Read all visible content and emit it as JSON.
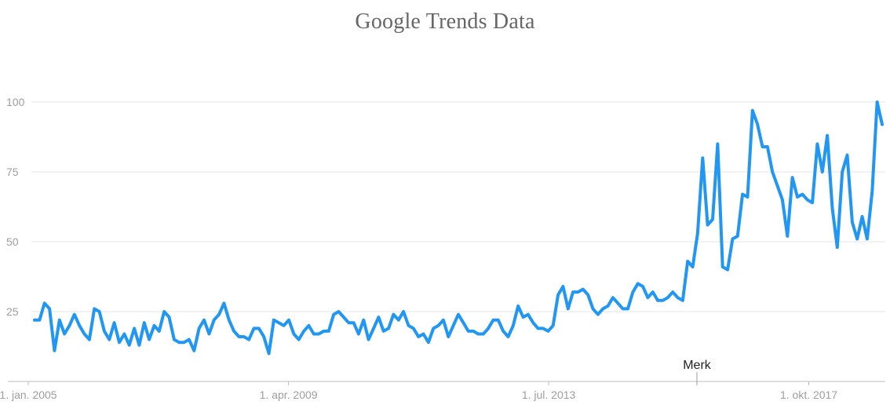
{
  "chart_data": {
    "type": "line",
    "title": "Google Trends Data",
    "xlabel": "",
    "ylabel": "",
    "ylim": [
      0,
      100
    ],
    "yticks": [
      25,
      50,
      75,
      100
    ],
    "x_tick_labels": [
      "1. jan. 2005",
      "1. apr. 2009",
      "1. jul. 2013",
      "1. okt. 2017"
    ],
    "annotation": "Merk",
    "grid": true,
    "legend": "none",
    "colors": {
      "line": "#2196f3",
      "grid": "#e6e6e6",
      "axis": "#bdbdbd",
      "text": "#9e9e9e",
      "title": "#666666"
    },
    "series": [
      {
        "values": [
          22,
          22,
          28,
          26,
          11,
          22,
          17,
          20,
          24,
          20,
          17,
          15,
          26,
          25,
          18,
          15,
          21,
          14,
          17,
          13,
          19,
          13,
          21,
          15,
          20,
          18,
          25,
          23,
          15,
          14,
          14,
          15,
          11,
          19,
          22,
          17,
          22,
          24,
          28,
          22,
          18,
          16,
          16,
          15,
          19,
          19,
          16,
          10,
          22,
          21,
          20,
          22,
          17,
          15,
          18,
          20,
          17,
          17,
          18,
          18,
          24,
          25,
          23,
          21,
          21,
          17,
          22,
          15,
          19,
          23,
          18,
          19,
          24,
          22,
          25,
          20,
          19,
          16,
          17,
          14,
          19,
          20,
          22,
          16,
          20,
          24,
          21,
          18,
          18,
          17,
          17,
          19,
          22,
          22,
          18,
          16,
          20,
          27,
          23,
          24,
          21,
          19,
          19,
          18,
          20,
          31,
          34,
          26,
          32,
          32,
          33,
          31,
          26,
          24,
          26,
          27,
          30,
          28,
          26,
          26,
          32,
          35,
          34,
          30,
          32,
          29,
          29,
          30,
          32,
          30,
          29,
          43,
          41,
          53,
          80,
          56,
          58,
          85,
          41,
          40,
          51,
          52,
          67,
          66,
          97,
          92,
          84,
          84,
          75,
          70,
          65,
          52,
          73,
          66,
          67,
          65,
          64,
          85,
          75,
          88,
          62,
          48,
          75,
          81,
          57,
          51,
          59,
          51,
          68,
          100,
          92
        ]
      }
    ]
  }
}
